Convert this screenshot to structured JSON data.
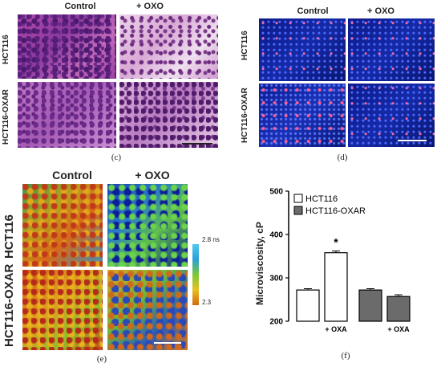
{
  "panel_c": {
    "col_labels": [
      "Control",
      "+ OXO"
    ],
    "row_labels": [
      "HCT116",
      "HCT116-OXAR"
    ],
    "letter": "(c)"
  },
  "panel_d": {
    "col_labels": [
      "Control",
      "+ OXO"
    ],
    "row_labels": [
      "HCT116",
      "HCT116-OXAR"
    ],
    "letter": "(d)"
  },
  "panel_e": {
    "col_labels": [
      "Control",
      "+ OXO"
    ],
    "row_labels": [
      "HCT116",
      "HCT116-OXAR"
    ],
    "colorbar_top": "2.8 ns",
    "colorbar_bottom": "2.3",
    "letter": "(e)"
  },
  "panel_f": {
    "letter": "(f)",
    "chart_data": {
      "type": "bar",
      "ylabel": "Microviscosity, cP",
      "ylim": [
        200,
        500
      ],
      "yticks": [
        200,
        300,
        400,
        500
      ],
      "x_labels": [
        "",
        "+ OXA",
        "",
        "+ OXA"
      ],
      "legend": [
        "HCT116",
        "HCT116-OXAR"
      ],
      "series_colors": [
        "#ffffff",
        "#6b6b6b"
      ],
      "bars": [
        {
          "series": "HCT116",
          "value": 272,
          "error": 3
        },
        {
          "series": "HCT116",
          "value": 358,
          "error": 4
        },
        {
          "series": "HCT116-OXAR",
          "value": 272,
          "error": 3
        },
        {
          "series": "HCT116-OXAR",
          "value": 257,
          "error": 4
        }
      ],
      "annotation": "*"
    }
  }
}
